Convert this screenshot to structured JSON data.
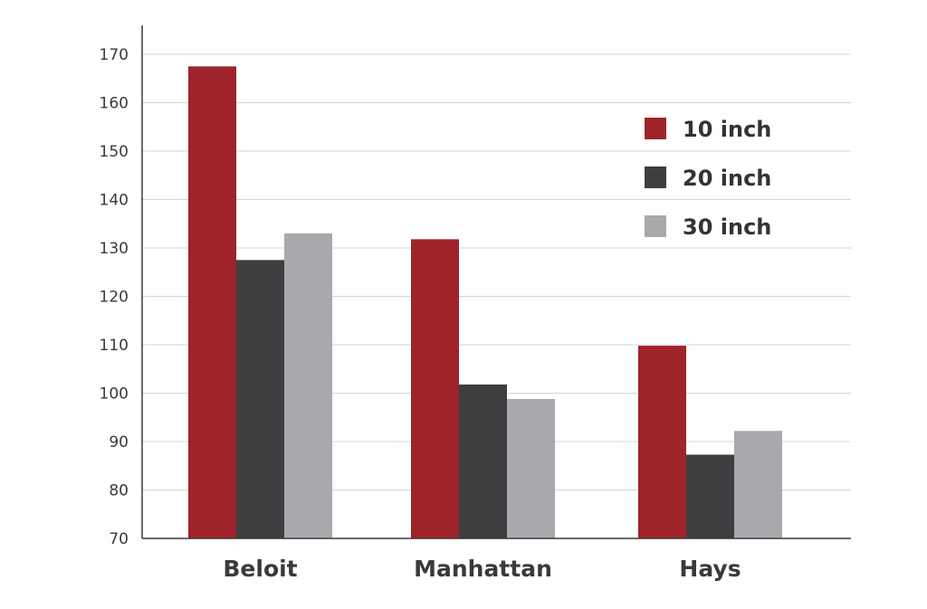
{
  "chart_data": {
    "type": "bar",
    "title": "",
    "xlabel": "",
    "ylabel": "",
    "categories": [
      "Beloit",
      "Manhattan",
      "Hays"
    ],
    "series": [
      {
        "name": "10 inch",
        "values": [
          167.5,
          131.8,
          109.8
        ],
        "color": "#9e232b"
      },
      {
        "name": "20 inch",
        "values": [
          127.5,
          101.8,
          87.3
        ],
        "color": "#3e3e40"
      },
      {
        "name": "30 inch",
        "values": [
          133,
          98.8,
          92.2
        ],
        "color": "#a8a9ac"
      }
    ],
    "ylim": [
      70,
      170
    ],
    "yticks": [
      70,
      80,
      90,
      100,
      110,
      120,
      130,
      140,
      150,
      160,
      170
    ],
    "grid": true,
    "legend_position": "top-right"
  }
}
